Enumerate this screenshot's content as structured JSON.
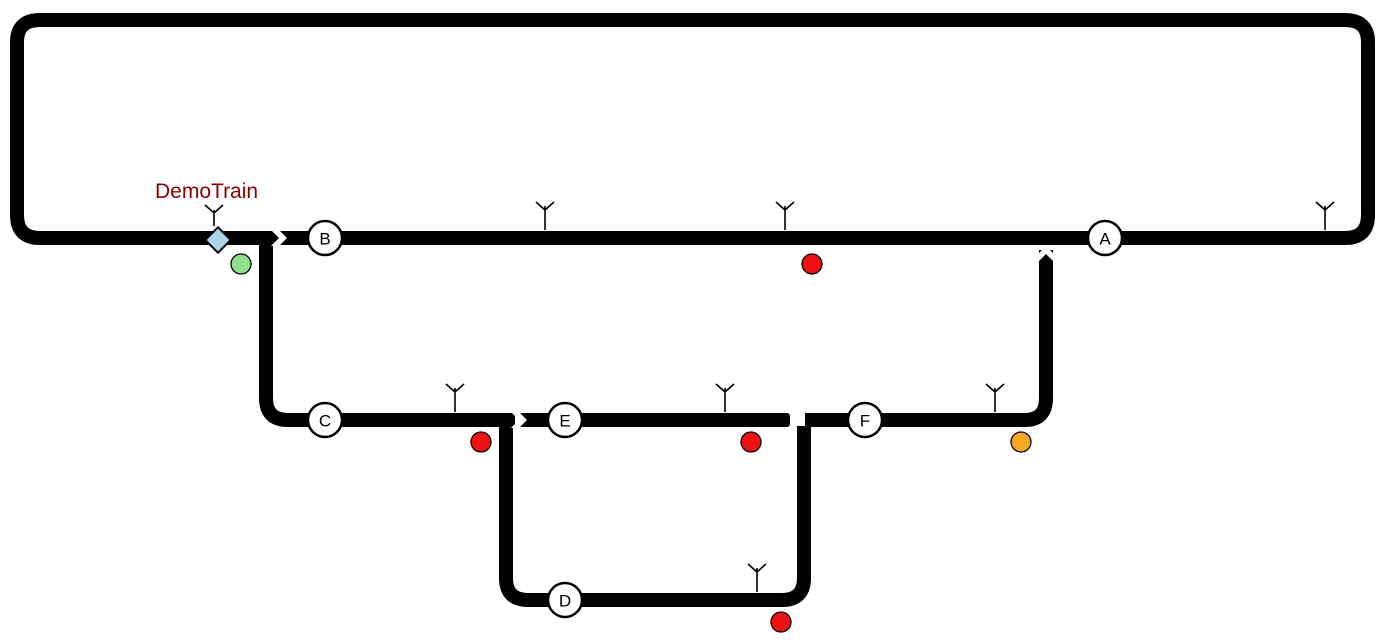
{
  "train": {
    "label": "DemoTrain",
    "label_color": "#8b0000",
    "marker_color": "#a9d4ea"
  },
  "stations": [
    {
      "id": "A",
      "label": "A"
    },
    {
      "id": "B",
      "label": "B"
    },
    {
      "id": "C",
      "label": "C"
    },
    {
      "id": "D",
      "label": "D"
    },
    {
      "id": "E",
      "label": "E"
    },
    {
      "id": "F",
      "label": "F"
    }
  ],
  "signal_colors": {
    "green": "#90e08a",
    "red": "#ee1111",
    "orange": "#f5a623"
  },
  "signals": [
    {
      "id": "sig-1",
      "state": "green"
    },
    {
      "id": "sig-2",
      "state": "red"
    },
    {
      "id": "sig-3",
      "state": "red"
    },
    {
      "id": "sig-4",
      "state": "red"
    },
    {
      "id": "sig-5",
      "state": "orange"
    },
    {
      "id": "sig-6",
      "state": "red"
    }
  ],
  "antenna_icon": "antenna-icon",
  "train_icon": "diamond-icon"
}
